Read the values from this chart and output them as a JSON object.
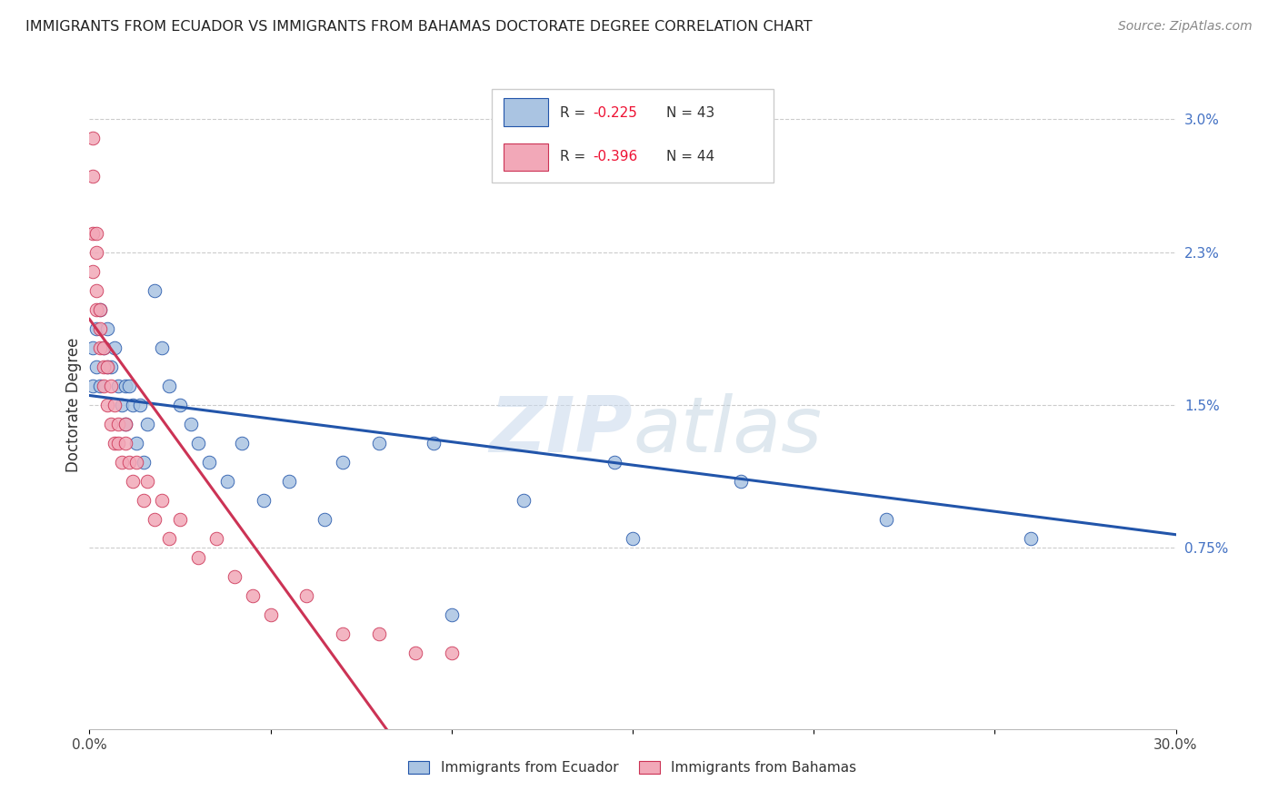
{
  "title": "IMMIGRANTS FROM ECUADOR VS IMMIGRANTS FROM BAHAMAS DOCTORATE DEGREE CORRELATION CHART",
  "source": "Source: ZipAtlas.com",
  "ylabel": "Doctorate Degree",
  "right_yticks": [
    "3.0%",
    "2.3%",
    "1.5%",
    "0.75%"
  ],
  "right_ytick_vals": [
    0.03,
    0.023,
    0.015,
    0.0075
  ],
  "xmin": 0.0,
  "xmax": 0.3,
  "ymin": -0.002,
  "ymax": 0.032,
  "color_blue": "#aac4e2",
  "color_pink": "#f2a8b8",
  "line_color_blue": "#2255aa",
  "line_color_pink": "#cc3355",
  "watermark": "ZIPatlas",
  "ecuador_x": [
    0.001,
    0.001,
    0.002,
    0.002,
    0.003,
    0.003,
    0.004,
    0.005,
    0.005,
    0.006,
    0.007,
    0.008,
    0.009,
    0.01,
    0.01,
    0.011,
    0.012,
    0.013,
    0.014,
    0.015,
    0.016,
    0.018,
    0.02,
    0.022,
    0.025,
    0.028,
    0.03,
    0.033,
    0.038,
    0.042,
    0.048,
    0.055,
    0.065,
    0.08,
    0.1,
    0.12,
    0.15,
    0.18,
    0.22,
    0.26,
    0.145,
    0.095,
    0.07
  ],
  "ecuador_y": [
    0.018,
    0.016,
    0.019,
    0.017,
    0.02,
    0.016,
    0.018,
    0.019,
    0.017,
    0.017,
    0.018,
    0.016,
    0.015,
    0.016,
    0.014,
    0.016,
    0.015,
    0.013,
    0.015,
    0.012,
    0.014,
    0.021,
    0.018,
    0.016,
    0.015,
    0.014,
    0.013,
    0.012,
    0.011,
    0.013,
    0.01,
    0.011,
    0.009,
    0.013,
    0.004,
    0.01,
    0.008,
    0.011,
    0.009,
    0.008,
    0.012,
    0.013,
    0.012
  ],
  "bahamas_x": [
    0.001,
    0.001,
    0.001,
    0.001,
    0.002,
    0.002,
    0.002,
    0.002,
    0.003,
    0.003,
    0.003,
    0.004,
    0.004,
    0.004,
    0.005,
    0.005,
    0.006,
    0.006,
    0.007,
    0.007,
    0.008,
    0.008,
    0.009,
    0.01,
    0.01,
    0.011,
    0.012,
    0.013,
    0.015,
    0.016,
    0.018,
    0.02,
    0.022,
    0.025,
    0.03,
    0.035,
    0.04,
    0.045,
    0.05,
    0.06,
    0.07,
    0.08,
    0.09,
    0.1
  ],
  "bahamas_y": [
    0.029,
    0.027,
    0.024,
    0.022,
    0.024,
    0.023,
    0.021,
    0.02,
    0.02,
    0.019,
    0.018,
    0.018,
    0.017,
    0.016,
    0.017,
    0.015,
    0.016,
    0.014,
    0.015,
    0.013,
    0.014,
    0.013,
    0.012,
    0.014,
    0.013,
    0.012,
    0.011,
    0.012,
    0.01,
    0.011,
    0.009,
    0.01,
    0.008,
    0.009,
    0.007,
    0.008,
    0.006,
    0.005,
    0.004,
    0.005,
    0.003,
    0.003,
    0.002,
    0.002
  ],
  "blue_line_x": [
    0.0,
    0.3
  ],
  "blue_line_y": [
    0.0155,
    0.0082
  ],
  "pink_line_x": [
    0.0,
    0.082
  ],
  "pink_line_y": [
    0.0195,
    -0.002
  ],
  "series1_label": "Immigrants from Ecuador",
  "series2_label": "Immigrants from Bahamas",
  "legend_r1": "R = -0.225",
  "legend_n1": "N = 43",
  "legend_r2": "R = -0.396",
  "legend_n2": "N = 44"
}
